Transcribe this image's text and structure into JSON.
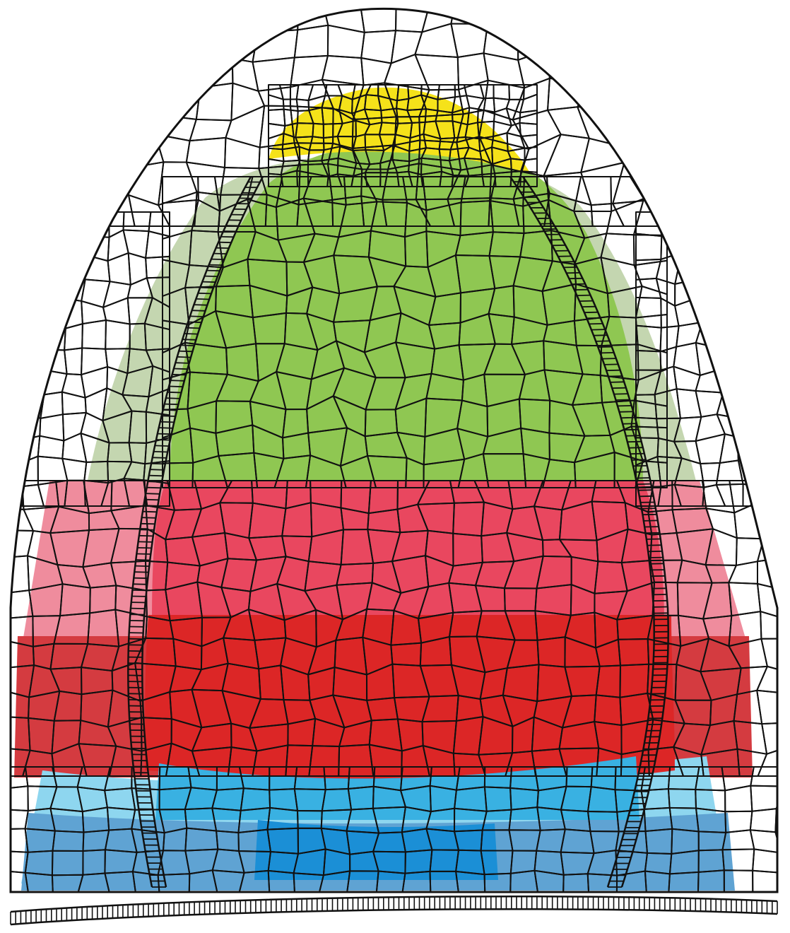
{
  "diagram": {
    "kind": "biological-cell-map",
    "subject": "plant-meristem-longitudinal-section",
    "text_labels": [],
    "outline_color": "#111111",
    "regions": [
      {
        "id": "tip-cells",
        "color": "#ffffff"
      },
      {
        "id": "central-zone-cap",
        "color": "#f5e21a"
      },
      {
        "id": "pale-green-flank",
        "color": "#c4d6b0"
      },
      {
        "id": "bright-green-core",
        "color": "#8fc752"
      },
      {
        "id": "pink-flank",
        "color": "#ef8c9d"
      },
      {
        "id": "rose-band",
        "color": "#e9475f"
      },
      {
        "id": "dark-red-flank",
        "color": "#d43b40"
      },
      {
        "id": "red-band",
        "color": "#dc2626"
      },
      {
        "id": "light-blue-band",
        "color": "#8ed6ef"
      },
      {
        "id": "sky-blue-band",
        "color": "#39b1e2"
      },
      {
        "id": "blue-base-flank",
        "color": "#5fa3d3"
      },
      {
        "id": "deep-blue-core",
        "color": "#1b8fd6"
      },
      {
        "id": "ladder-strands",
        "color": "#ffffff"
      }
    ]
  }
}
